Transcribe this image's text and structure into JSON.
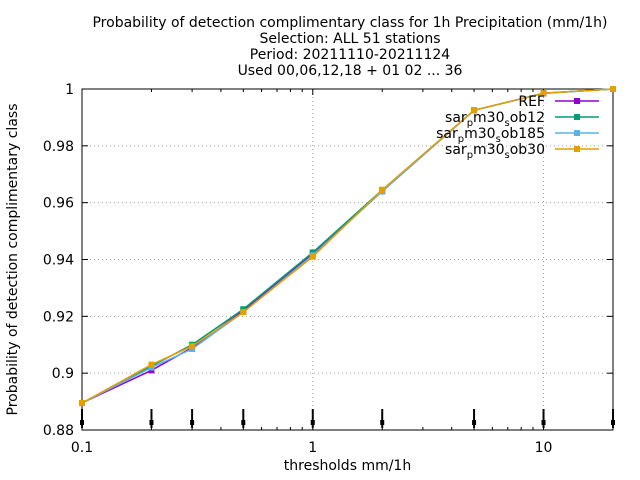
{
  "chart_data": {
    "type": "line",
    "title_lines": [
      "Probability of detection complimentary class  for 1h Precipitation (mm/1h)",
      "Selection: ALL      51 stations",
      "Period: 20211110-20211124",
      "Used 00,06,12,18 + 01 02 ... 36"
    ],
    "xlabel": "thresholds mm/1h",
    "ylabel": "Probability of detection complimentary class",
    "xscale": "log",
    "xlim": [
      0.1,
      20
    ],
    "ylim": [
      0.88,
      1.0
    ],
    "xticks": [
      0.1,
      1,
      10
    ],
    "xtick_labels": [
      "0.1",
      "1",
      "10"
    ],
    "yticks": [
      0.88,
      0.9,
      0.92,
      0.94,
      0.96,
      0.98,
      1.0
    ],
    "ytick_labels": [
      "0.88",
      "0.9",
      "0.92",
      "0.94",
      "0.96",
      "0.98",
      "1"
    ],
    "minor_tick_markers_at": [
      0.1,
      0.2,
      0.3,
      0.5,
      1,
      2,
      5,
      10,
      20
    ],
    "grid": true,
    "legend_position": "top-right",
    "x": [
      0.1,
      0.2,
      0.3,
      0.5,
      1,
      2,
      5,
      10,
      20
    ],
    "series": [
      {
        "name": "REF",
        "color": "#9400d3",
        "marker": "square",
        "values": [
          0.8895,
          0.901,
          0.909,
          0.922,
          0.942,
          0.964,
          0.9925,
          0.9985,
          1.0
        ]
      },
      {
        "name": "sar_p m30_s ob12",
        "label_main": [
          "sar",
          "m30",
          "ob12"
        ],
        "label_sub": [
          "p",
          "s"
        ],
        "color": "#009e73",
        "marker": "square",
        "values": [
          0.8895,
          0.9025,
          0.91,
          0.9225,
          0.9425,
          0.9645,
          0.9925,
          0.9985,
          1.0
        ]
      },
      {
        "name": "sar_p m30_s ob185",
        "label_main": [
          "sar",
          "m30",
          "ob185"
        ],
        "label_sub": [
          "p",
          "s"
        ],
        "color": "#56b4e9",
        "marker": "square",
        "values": [
          0.8895,
          0.902,
          0.9085,
          0.9215,
          0.9415,
          0.964,
          0.9925,
          0.9985,
          1.0
        ]
      },
      {
        "name": "sar_p m30_s ob30",
        "label_main": [
          "sar",
          "m30",
          "ob30"
        ],
        "label_sub": [
          "p",
          "s"
        ],
        "color": "#e69f00",
        "marker": "square",
        "values": [
          0.8895,
          0.903,
          0.9095,
          0.9215,
          0.941,
          0.9645,
          0.9925,
          0.9985,
          1.0
        ]
      }
    ]
  }
}
